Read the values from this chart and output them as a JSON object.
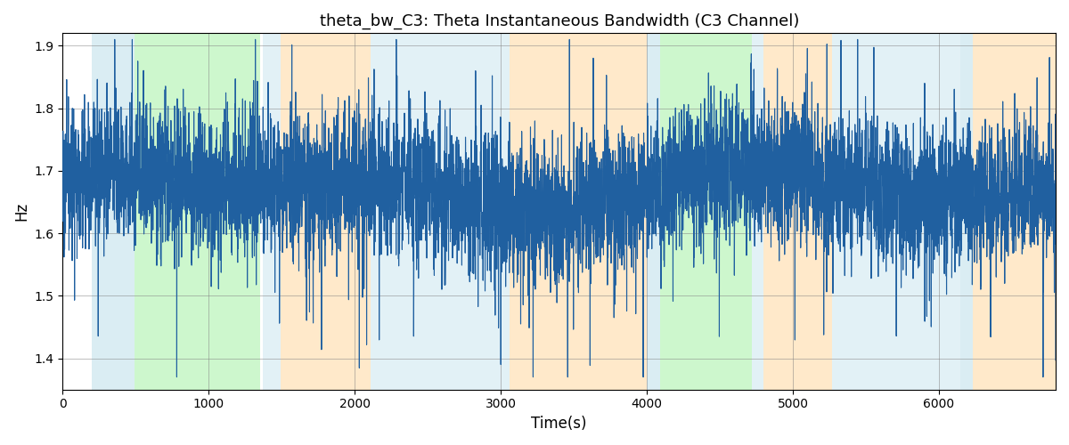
{
  "title": "theta_bw_C3: Theta Instantaneous Bandwidth (C3 Channel)",
  "xlabel": "Time(s)",
  "ylabel": "Hz",
  "ylim": [
    1.35,
    1.92
  ],
  "xlim": [
    0,
    6800
  ],
  "yticks": [
    1.4,
    1.5,
    1.6,
    1.7,
    1.8,
    1.9
  ],
  "xticks": [
    0,
    1000,
    2000,
    3000,
    4000,
    5000,
    6000
  ],
  "line_color": "#2060a0",
  "line_width": 0.8,
  "bg_regions": [
    {
      "xstart": 200,
      "xend": 490,
      "color": "#add8e6",
      "alpha": 0.45
    },
    {
      "xstart": 490,
      "xend": 1350,
      "color": "#90ee90",
      "alpha": 0.45
    },
    {
      "xstart": 1370,
      "xend": 1490,
      "color": "#add8e6",
      "alpha": 0.35
    },
    {
      "xstart": 1490,
      "xend": 2110,
      "color": "#ffd8a0",
      "alpha": 0.55
    },
    {
      "xstart": 2110,
      "xend": 3060,
      "color": "#add8e6",
      "alpha": 0.35
    },
    {
      "xstart": 3060,
      "xend": 4000,
      "color": "#ffd8a0",
      "alpha": 0.55
    },
    {
      "xstart": 4000,
      "xend": 4090,
      "color": "#add8e6",
      "alpha": 0.45
    },
    {
      "xstart": 4090,
      "xend": 4720,
      "color": "#90ee90",
      "alpha": 0.45
    },
    {
      "xstart": 4720,
      "xend": 4800,
      "color": "#add8e6",
      "alpha": 0.35
    },
    {
      "xstart": 4800,
      "xend": 5270,
      "color": "#ffd8a0",
      "alpha": 0.55
    },
    {
      "xstart": 5270,
      "xend": 6150,
      "color": "#add8e6",
      "alpha": 0.35
    },
    {
      "xstart": 6150,
      "xend": 6230,
      "color": "#add8e6",
      "alpha": 0.45
    },
    {
      "xstart": 6230,
      "xend": 6800,
      "color": "#ffd8a0",
      "alpha": 0.55
    }
  ],
  "seed": 1234,
  "n_points": 6800,
  "mean": 1.668,
  "noise_std": 0.055,
  "slow_amplitude": 0.025,
  "slow_freq": 0.00025,
  "slow_amplitude2": 0.018,
  "slow_freq2": 0.00045,
  "spike_prob": 0.08,
  "spike_scale": 0.06
}
